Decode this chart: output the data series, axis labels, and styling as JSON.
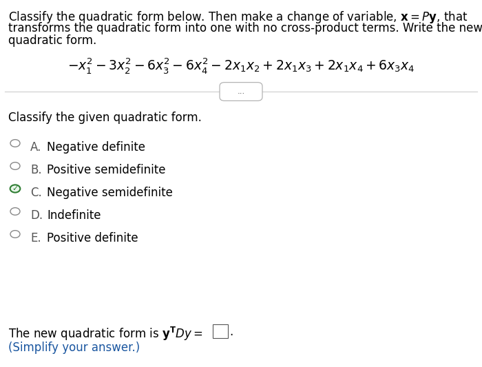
{
  "background_color": "#ffffff",
  "text_color": "#000000",
  "simplify_color": "#1a56a0",
  "font_size_body": 12,
  "font_size_formula": 13.5,
  "ellipsis_text": "...",
  "classify_label": "Classify the given quadratic form.",
  "options": [
    {
      "label": "A.",
      "text": "Negative definite",
      "checked": false
    },
    {
      "label": "B.",
      "text": "Positive semidefinite",
      "checked": false
    },
    {
      "label": "C.",
      "text": "Negative semidefinite",
      "checked": true
    },
    {
      "label": "D.",
      "text": "Indefinite",
      "checked": false
    },
    {
      "label": "E.",
      "text": "Positive definite",
      "checked": false
    }
  ]
}
